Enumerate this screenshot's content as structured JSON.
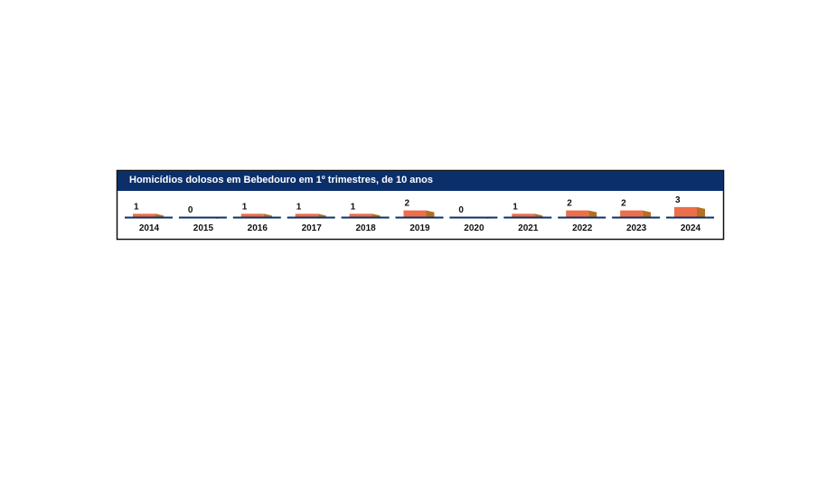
{
  "chart_data": {
    "type": "bar",
    "title": "Homicídios dolosos em Bebedouro em 1º trimestres, de 10 anos",
    "categories": [
      "2014",
      "2015",
      "2016",
      "2017",
      "2018",
      "2019",
      "2020",
      "2021",
      "2022",
      "2023",
      "2024"
    ],
    "values": [
      1,
      0,
      1,
      1,
      1,
      2,
      0,
      1,
      2,
      2,
      3
    ],
    "color": "#ec6e4a",
    "side_color": "#b4701f"
  }
}
